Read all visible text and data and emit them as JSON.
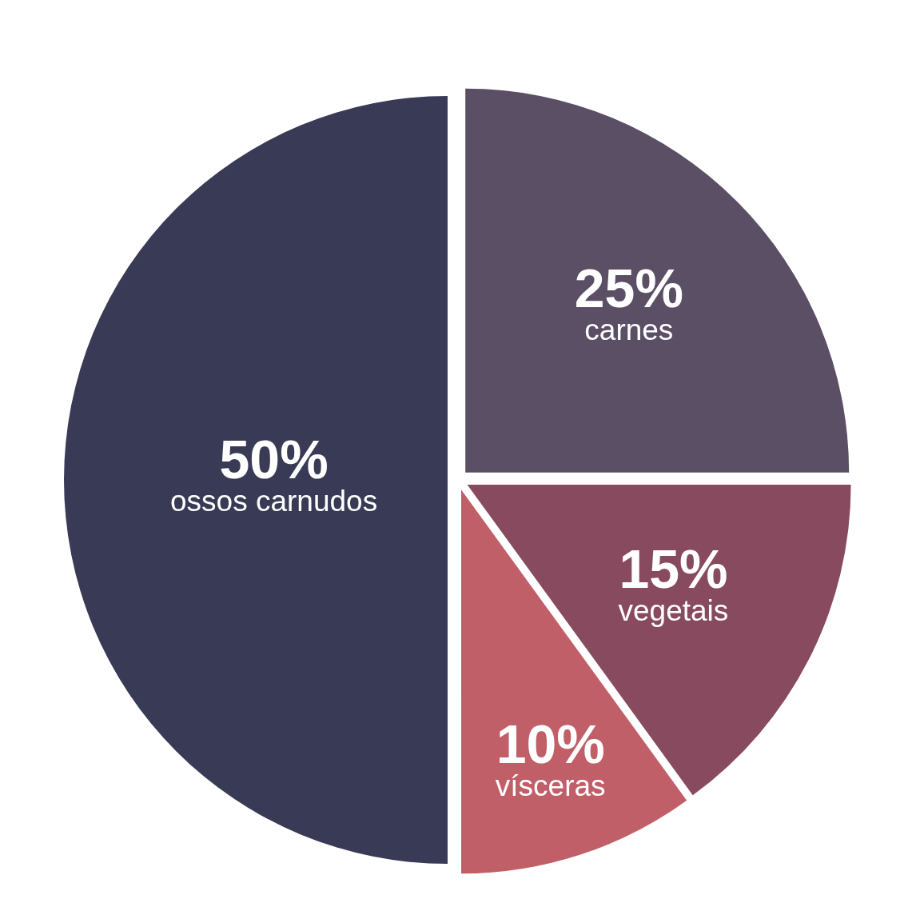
{
  "chart_data": {
    "type": "pie",
    "categories": [
      "carnes",
      "vegetais",
      "vísceras",
      "ossos carnudos"
    ],
    "values": [
      25,
      15,
      10,
      50
    ],
    "colors": [
      "#5b4f66",
      "#874a5f",
      "#c15f69",
      "#393a55"
    ],
    "value_labels": [
      "25%",
      "15%",
      "10%",
      "50%"
    ],
    "legend": false
  }
}
